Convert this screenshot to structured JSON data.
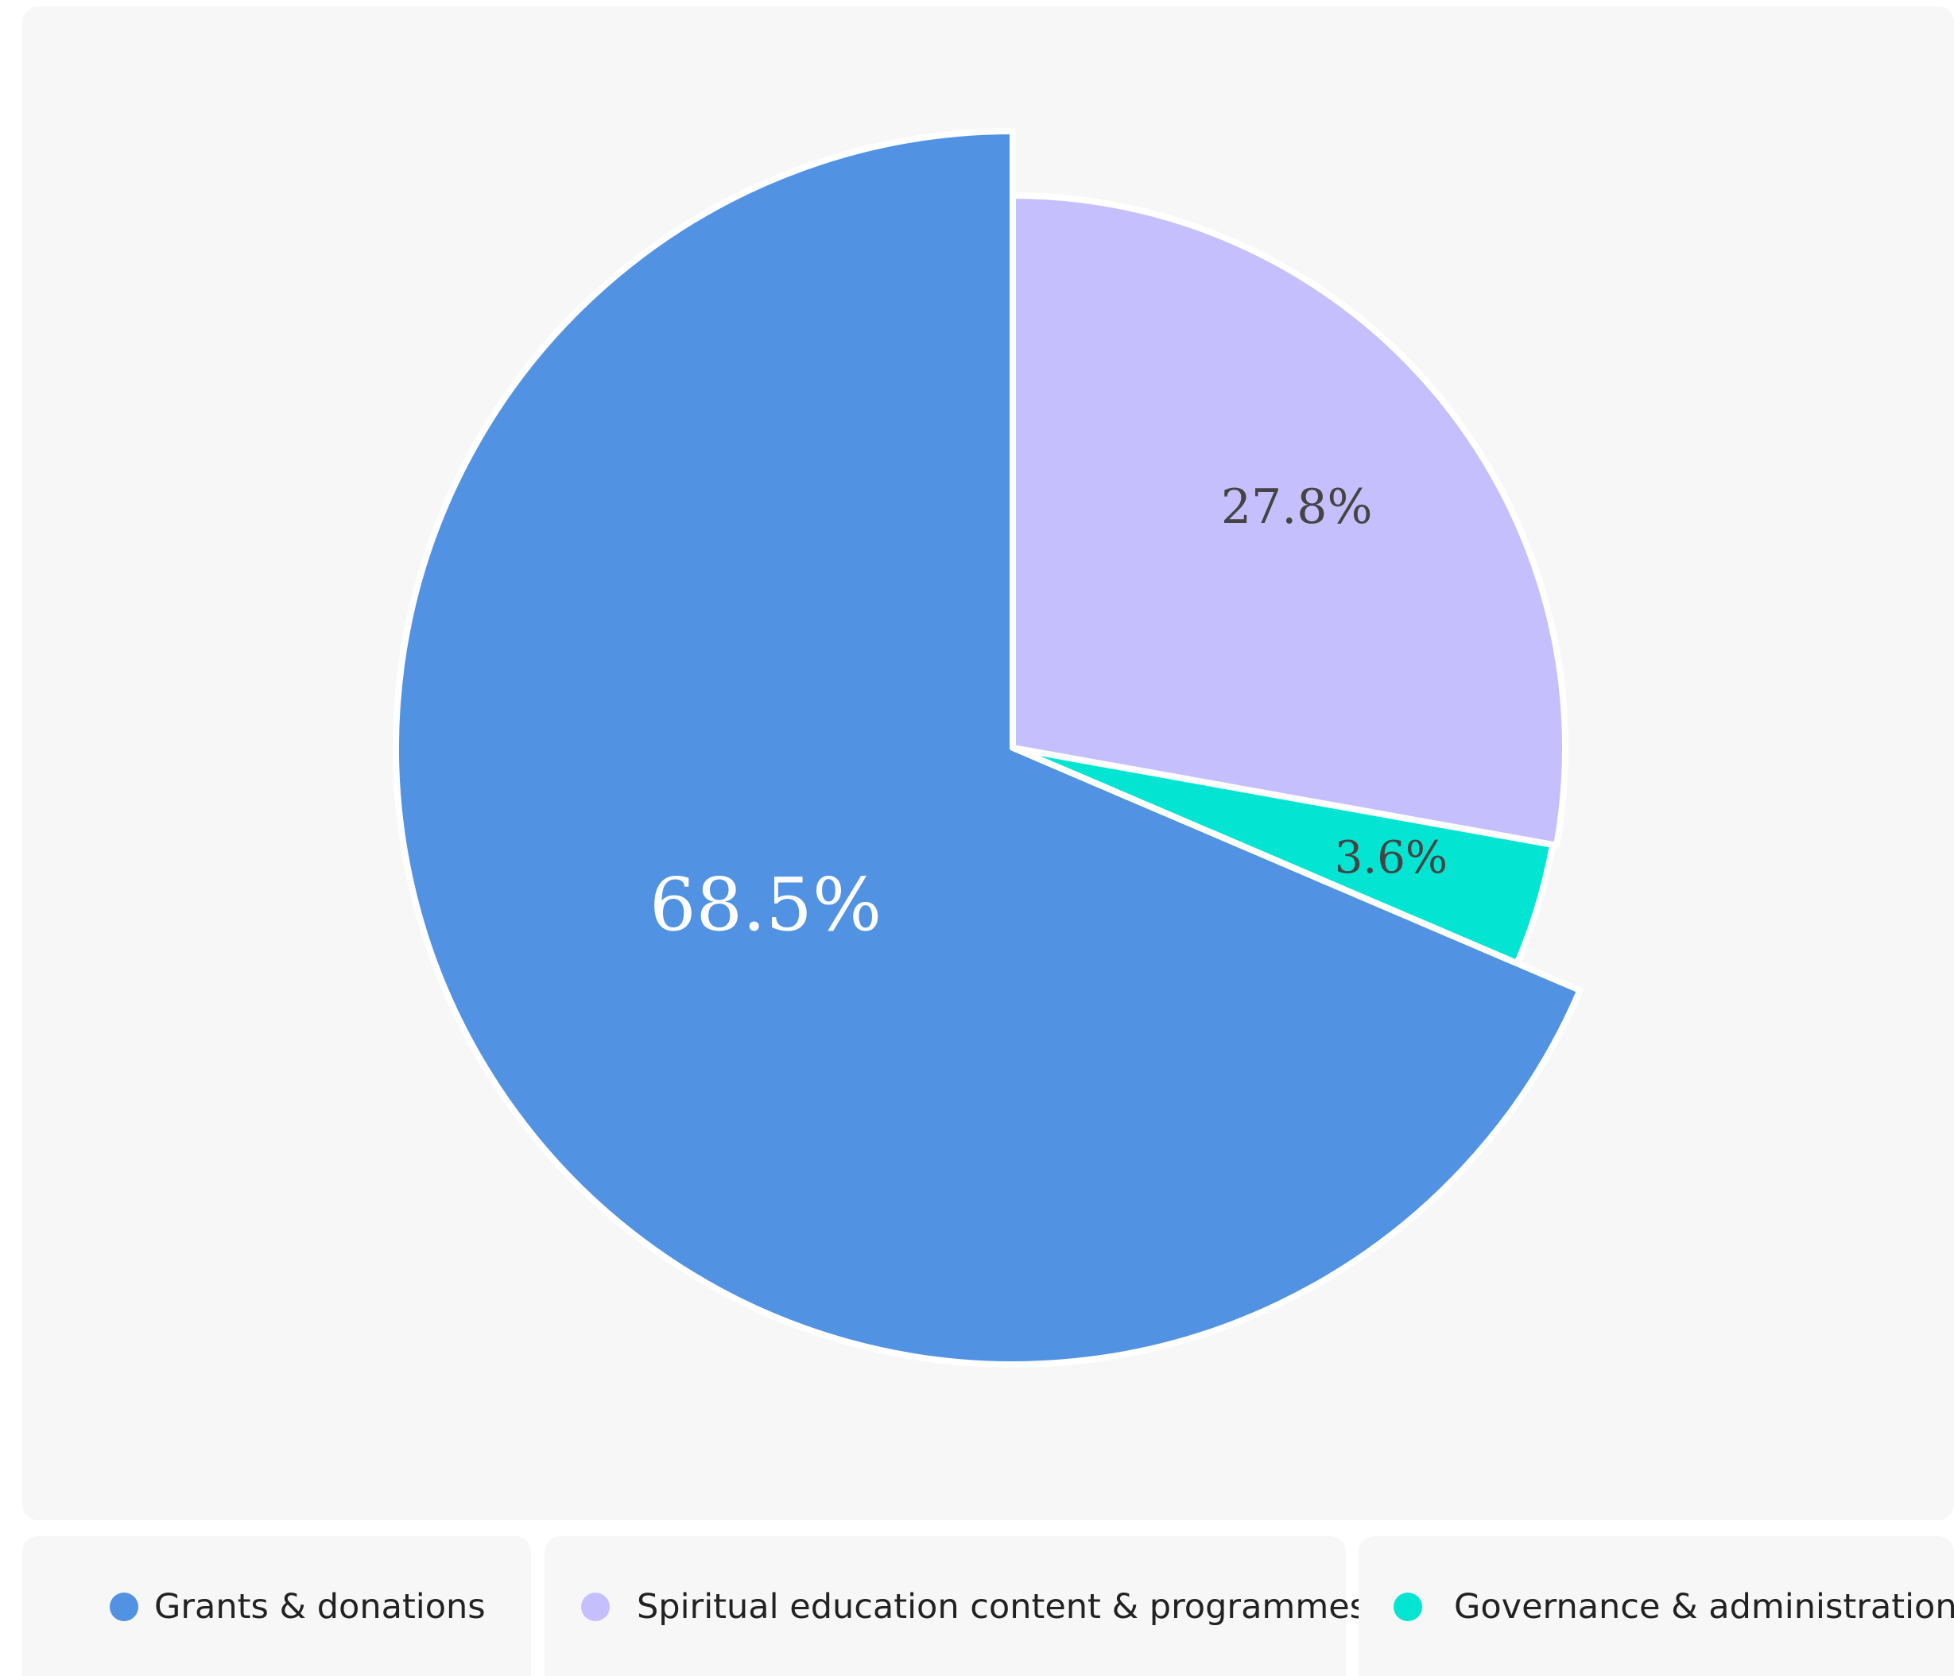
{
  "chart_data": {
    "type": "pie",
    "categories": [
      "Grants & donations",
      "Spiritual education content & programmes",
      "Governance & administration"
    ],
    "values": [
      68.5,
      27.8,
      3.6
    ],
    "value_labels": [
      "68.5%",
      "27.8%",
      "3.6%"
    ],
    "colors": [
      "#5192e3",
      "#c5c0fd",
      "#03e5d2"
    ]
  }
}
